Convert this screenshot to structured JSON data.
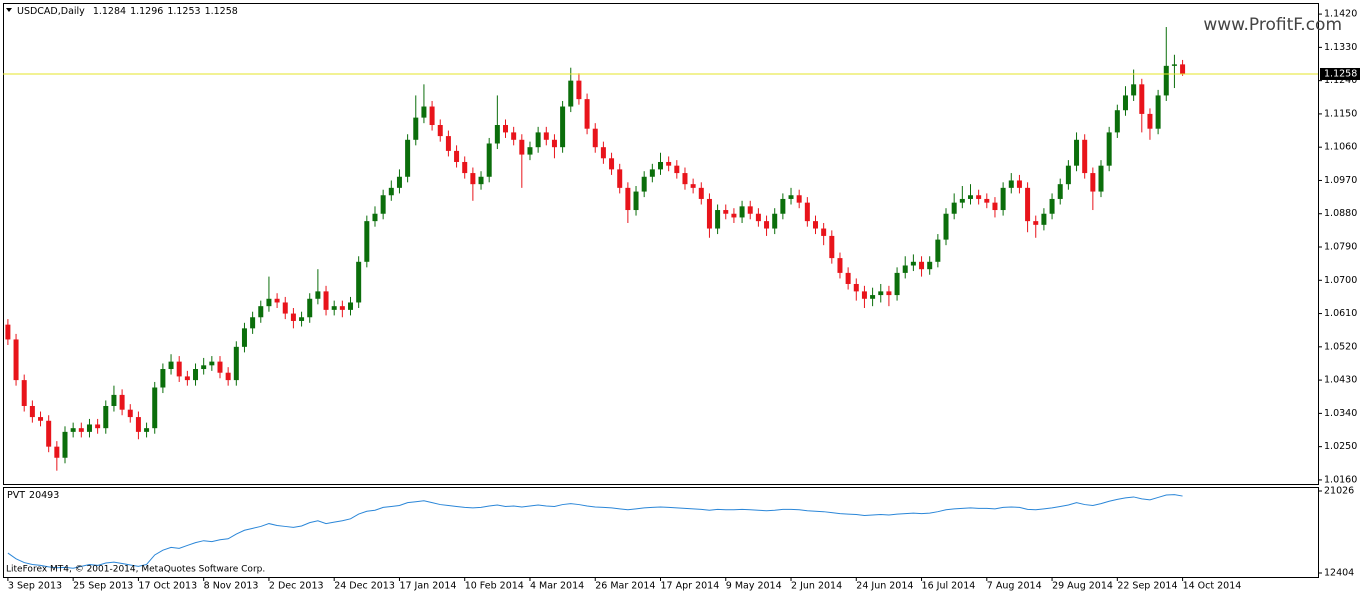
{
  "chart_data": [
    {
      "type": "candlestick",
      "title": "USDCAD,Daily",
      "up_color": "#0b6e0b",
      "down_color": "#e8141b",
      "price_line_color": "#e6e62a",
      "xlim": [
        -0.6,
        160.6
      ],
      "ylim": [
        1.0149,
        1.145
      ],
      "yticks": [
        {
          "value": 1.142,
          "label": "1.1420"
        },
        {
          "value": 1.133,
          "label": "1.1330"
        },
        {
          "value": 1.124,
          "label": "1.1240"
        },
        {
          "value": 1.115,
          "label": "1.1150"
        },
        {
          "value": 1.106,
          "label": "1.1060"
        },
        {
          "value": 1.097,
          "label": "1.0970"
        },
        {
          "value": 1.088,
          "label": "1.0880"
        },
        {
          "value": 1.079,
          "label": "1.0790"
        },
        {
          "value": 1.07,
          "label": "1.0700"
        },
        {
          "value": 1.061,
          "label": "1.0610"
        },
        {
          "value": 1.052,
          "label": "1.0520"
        },
        {
          "value": 1.043,
          "label": "1.0430"
        },
        {
          "value": 1.034,
          "label": "1.0340"
        },
        {
          "value": 1.025,
          "label": "1.0250"
        },
        {
          "value": 1.016,
          "label": "1.0160"
        }
      ],
      "xticks": [
        {
          "value": 0,
          "label": "3 Sep 2013"
        },
        {
          "value": 8,
          "label": "25 Sep 2013"
        },
        {
          "value": 16,
          "label": "17 Oct 2013"
        },
        {
          "value": 24,
          "label": "8 Nov 2013"
        },
        {
          "value": 32,
          "label": "2 Dec 2013"
        },
        {
          "value": 40,
          "label": "24 Dec 2013"
        },
        {
          "value": 48,
          "label": "17 Jan 2014"
        },
        {
          "value": 56,
          "label": "10 Feb 2014"
        },
        {
          "value": 64,
          "label": "4 Mar 2014"
        },
        {
          "value": 72,
          "label": "26 Mar 2014"
        },
        {
          "value": 80,
          "label": "17 Apr 2014"
        },
        {
          "value": 88,
          "label": "9 May 2014"
        },
        {
          "value": 96,
          "label": "2 Jun 2014"
        },
        {
          "value": 104,
          "label": "24 Jun 2014"
        },
        {
          "value": 112,
          "label": "16 Jul 2014"
        },
        {
          "value": 120,
          "label": "7 Aug 2014"
        },
        {
          "value": 128,
          "label": "29 Aug 2014"
        },
        {
          "value": 136,
          "label": "22 Sep 2014"
        },
        {
          "value": 144,
          "label": "14 Oct 2014"
        }
      ],
      "open": [
        1.058,
        1.054,
        1.043,
        1.036,
        1.033,
        1.032,
        1.025,
        1.022,
        1.029,
        1.03,
        1.029,
        1.031,
        1.03,
        1.036,
        1.039,
        1.035,
        1.033,
        1.029,
        1.03,
        1.041,
        1.046,
        1.048,
        1.044,
        1.043,
        1.046,
        1.047,
        1.048,
        1.045,
        1.043,
        1.052,
        1.057,
        1.06,
        1.063,
        1.065,
        1.064,
        1.061,
        1.059,
        1.06,
        1.065,
        1.067,
        1.062,
        1.063,
        1.062,
        1.064,
        1.075,
        1.086,
        1.088,
        1.093,
        1.095,
        1.098,
        1.108,
        1.114,
        1.117,
        1.112,
        1.109,
        1.105,
        1.102,
        1.099,
        1.096,
        1.098,
        1.107,
        1.112,
        1.11,
        1.108,
        1.104,
        1.106,
        1.11,
        1.108,
        1.106,
        1.117,
        1.124,
        1.119,
        1.111,
        1.106,
        1.103,
        1.1,
        1.095,
        1.089,
        1.094,
        1.098,
        1.1,
        1.102,
        1.101,
        1.099,
        1.096,
        1.095,
        1.092,
        1.084,
        1.089,
        1.088,
        1.087,
        1.09,
        1.088,
        1.086,
        1.084,
        1.088,
        1.092,
        1.093,
        1.091,
        1.086,
        1.084,
        1.082,
        1.076,
        1.072,
        1.069,
        1.067,
        1.065,
        1.066,
        1.067,
        1.066,
        1.072,
        1.074,
        1.075,
        1.073,
        1.075,
        1.081,
        1.088,
        1.091,
        1.092,
        1.093,
        1.092,
        1.091,
        1.089,
        1.095,
        1.097,
        1.095,
        1.086,
        1.085,
        1.088,
        1.092,
        1.096,
        1.101,
        1.108,
        1.099,
        1.094,
        1.101,
        1.11,
        1.116,
        1.12,
        1.123,
        1.115,
        1.111,
        1.12,
        1.128,
        1.1284
      ],
      "high": [
        1.0595,
        1.0555,
        1.0445,
        1.0375,
        1.0345,
        1.0335,
        1.0265,
        1.0305,
        1.0315,
        1.0315,
        1.0325,
        1.0325,
        1.0375,
        1.0415,
        1.0405,
        1.0365,
        1.0345,
        1.0315,
        1.0425,
        1.0475,
        1.05,
        1.0495,
        1.0455,
        1.0475,
        1.049,
        1.0495,
        1.0495,
        1.0465,
        1.0535,
        1.0585,
        1.0615,
        1.0645,
        1.071,
        1.0665,
        1.0655,
        1.0625,
        1.0615,
        1.0665,
        1.073,
        1.0685,
        1.0645,
        1.0645,
        1.0655,
        1.0765,
        1.0875,
        1.09,
        1.0945,
        1.097,
        1.1,
        1.1095,
        1.12,
        1.123,
        1.1185,
        1.1135,
        1.1105,
        1.1065,
        1.1035,
        1.1005,
        1.0995,
        1.1085,
        1.12,
        1.1135,
        1.1115,
        1.1095,
        1.1075,
        1.1115,
        1.1115,
        1.1095,
        1.1185,
        1.1275,
        1.126,
        1.1205,
        1.1125,
        1.1075,
        1.1045,
        1.1015,
        1.0965,
        1.0955,
        1.0995,
        1.1015,
        1.1045,
        1.1035,
        1.1025,
        1.1005,
        1.0975,
        1.0965,
        1.0935,
        1.0905,
        1.0905,
        1.0895,
        1.0915,
        1.0915,
        1.0895,
        1.0875,
        1.0895,
        1.0935,
        1.095,
        1.0945,
        1.0925,
        1.0875,
        1.0855,
        1.0835,
        1.0775,
        1.0735,
        1.0705,
        1.0685,
        1.068,
        1.069,
        1.0685,
        1.0735,
        1.0765,
        1.077,
        1.0765,
        1.0765,
        1.0825,
        1.0895,
        1.0935,
        1.0955,
        1.096,
        1.0945,
        1.0935,
        1.0925,
        1.0965,
        1.099,
        1.0985,
        1.0965,
        1.0875,
        1.0895,
        1.0935,
        1.0975,
        1.1025,
        1.11,
        1.1095,
        1.1005,
        1.1025,
        1.1115,
        1.1175,
        1.1225,
        1.127,
        1.1245,
        1.1165,
        1.1215,
        1.1385,
        1.131,
        1.1296
      ],
      "low": [
        1.0525,
        1.0415,
        1.0345,
        1.0315,
        1.0305,
        1.0235,
        1.0185,
        1.0205,
        1.0275,
        1.0275,
        1.0275,
        1.0285,
        1.0285,
        1.0345,
        1.0335,
        1.0315,
        1.027,
        1.0275,
        1.0285,
        1.0395,
        1.0445,
        1.0425,
        1.0415,
        1.0415,
        1.0445,
        1.0455,
        1.0435,
        1.0415,
        1.0415,
        1.0505,
        1.0555,
        1.0585,
        1.0615,
        1.0625,
        1.0595,
        1.057,
        1.0575,
        1.0585,
        1.0635,
        1.0605,
        1.0605,
        1.06,
        1.0605,
        1.0625,
        1.0735,
        1.0845,
        1.0865,
        1.0915,
        1.0935,
        1.0965,
        1.1065,
        1.1125,
        1.1105,
        1.1075,
        1.1035,
        1.1005,
        1.0975,
        1.0915,
        1.0945,
        1.0965,
        1.1055,
        1.1085,
        1.1065,
        1.095,
        1.1025,
        1.1045,
        1.1065,
        1.103,
        1.1045,
        1.1155,
        1.1175,
        1.1095,
        1.1045,
        1.1015,
        1.0985,
        1.0935,
        1.0855,
        1.0875,
        1.0925,
        1.0965,
        1.0985,
        1.0995,
        1.0975,
        1.0945,
        1.0935,
        1.0905,
        1.0815,
        1.0825,
        1.0865,
        1.0855,
        1.0855,
        1.0865,
        1.0845,
        1.082,
        1.0825,
        1.0865,
        1.0905,
        1.0895,
        1.0845,
        1.0825,
        1.0795,
        1.0745,
        1.0705,
        1.0675,
        1.0645,
        1.0625,
        1.063,
        1.064,
        1.063,
        1.0645,
        1.0705,
        1.0725,
        1.071,
        1.0715,
        1.0735,
        1.0795,
        1.0865,
        1.0895,
        1.0905,
        1.0905,
        1.0895,
        1.087,
        1.0875,
        1.0935,
        1.0935,
        1.083,
        1.0815,
        1.0835,
        1.0865,
        1.0905,
        1.0945,
        1.0995,
        1.0975,
        1.089,
        1.0925,
        1.0995,
        1.1085,
        1.1145,
        1.1185,
        1.11,
        1.108,
        1.1095,
        1.1185,
        1.122,
        1.1253
      ],
      "close": [
        1.054,
        1.043,
        1.036,
        1.033,
        1.032,
        1.025,
        1.022,
        1.029,
        1.03,
        1.029,
        1.031,
        1.03,
        1.036,
        1.039,
        1.035,
        1.033,
        1.029,
        1.03,
        1.041,
        1.046,
        1.048,
        1.044,
        1.043,
        1.046,
        1.047,
        1.048,
        1.045,
        1.043,
        1.052,
        1.057,
        1.06,
        1.063,
        1.065,
        1.064,
        1.061,
        1.059,
        1.06,
        1.065,
        1.067,
        1.062,
        1.063,
        1.062,
        1.064,
        1.075,
        1.086,
        1.088,
        1.093,
        1.095,
        1.098,
        1.108,
        1.114,
        1.117,
        1.112,
        1.109,
        1.105,
        1.102,
        1.099,
        1.096,
        1.098,
        1.107,
        1.112,
        1.11,
        1.108,
        1.104,
        1.106,
        1.11,
        1.108,
        1.106,
        1.117,
        1.124,
        1.119,
        1.111,
        1.106,
        1.103,
        1.1,
        1.095,
        1.089,
        1.094,
        1.098,
        1.1,
        1.102,
        1.101,
        1.099,
        1.096,
        1.095,
        1.092,
        1.084,
        1.089,
        1.088,
        1.087,
        1.09,
        1.088,
        1.086,
        1.084,
        1.088,
        1.092,
        1.093,
        1.091,
        1.086,
        1.084,
        1.082,
        1.076,
        1.072,
        1.069,
        1.067,
        1.065,
        1.066,
        1.067,
        1.066,
        1.072,
        1.074,
        1.075,
        1.073,
        1.075,
        1.081,
        1.088,
        1.091,
        1.092,
        1.093,
        1.092,
        1.091,
        1.089,
        1.095,
        1.097,
        1.095,
        1.086,
        1.085,
        1.088,
        1.092,
        1.096,
        1.101,
        1.108,
        1.099,
        1.094,
        1.101,
        1.11,
        1.116,
        1.12,
        1.123,
        1.115,
        1.111,
        1.12,
        1.128,
        1.1284,
        1.1258
      ]
    },
    {
      "type": "line",
      "ylim": [
        12404,
        21026
      ],
      "yticks": [
        21026,
        12404
      ],
      "series": [
        {
          "name": "PVT",
          "color": "#2a86d8",
          "values": [
            14500,
            13900,
            13500,
            13300,
            13200,
            13050,
            12950,
            13000,
            12900,
            13100,
            13300,
            13200,
            13450,
            13550,
            13400,
            13250,
            13100,
            13300,
            14300,
            14800,
            15100,
            15000,
            15300,
            15600,
            15800,
            15700,
            15900,
            16000,
            16500,
            16900,
            17100,
            17300,
            17600,
            17400,
            17300,
            17200,
            17350,
            17700,
            17900,
            17600,
            17750,
            17900,
            18100,
            18600,
            18900,
            19000,
            19300,
            19400,
            19500,
            19800,
            19900,
            20000,
            19800,
            19600,
            19500,
            19400,
            19300,
            19250,
            19300,
            19450,
            19550,
            19400,
            19450,
            19350,
            19450,
            19550,
            19450,
            19400,
            19600,
            19700,
            19600,
            19450,
            19350,
            19300,
            19250,
            19150,
            19050,
            19150,
            19250,
            19300,
            19350,
            19300,
            19250,
            19200,
            19150,
            19100,
            19000,
            19100,
            19050,
            19050,
            19100,
            19050,
            19000,
            18950,
            19000,
            19100,
            19100,
            19050,
            18950,
            18900,
            18850,
            18750,
            18650,
            18600,
            18550,
            18450,
            18500,
            18550,
            18500,
            18600,
            18650,
            18700,
            18650,
            18700,
            18850,
            19050,
            19150,
            19200,
            19250,
            19200,
            19200,
            19150,
            19300,
            19350,
            19300,
            19100,
            19050,
            19150,
            19250,
            19400,
            19550,
            19800,
            19600,
            19500,
            19700,
            19950,
            20150,
            20300,
            20400,
            20200,
            20100,
            20350,
            20600,
            20650,
            20493
          ]
        }
      ]
    }
  ],
  "watermark": "www.ProfitF.com",
  "copyright": "LiteForex MT4, © 2001-2014, MetaQuotes Software Corp."
}
